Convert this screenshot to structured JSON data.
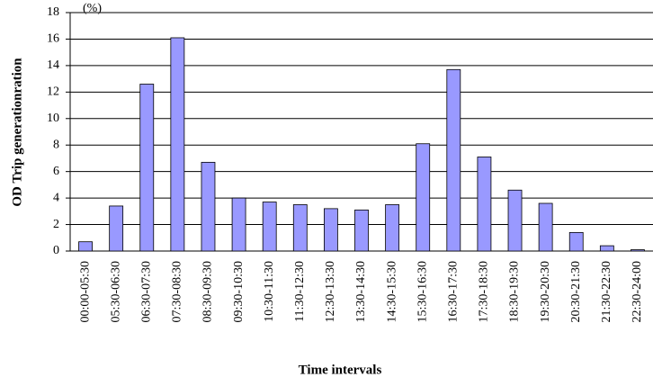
{
  "chart_data": {
    "type": "bar",
    "y_label": "OD Trip generationration",
    "y_unit": "(%)",
    "x_label": "Time intervals",
    "categories": [
      "00:00-05:30",
      "05:30-06:30",
      "06:30-07:30",
      "07:30-08:30",
      "08:30-09:30",
      "09:30-10:30",
      "10:30-11:30",
      "11:30-12:30",
      "12:30-13:30",
      "13:30-14:30",
      "14:30-15:30",
      "15:30-16:30",
      "16:30-17:30",
      "17:30-18:30",
      "18:30-19:30",
      "19:30-20:30",
      "20:30-21:30",
      "21:30-22:30",
      "22:30-24:00"
    ],
    "values": [
      0.7,
      3.4,
      12.6,
      16.1,
      6.7,
      4.0,
      3.7,
      3.5,
      3.2,
      3.1,
      3.5,
      8.1,
      13.7,
      7.1,
      4.6,
      3.6,
      1.4,
      0.4,
      0.1
    ],
    "color": "#9999ff",
    "ylim": [
      0,
      18
    ],
    "yticks": [
      0,
      2,
      4,
      6,
      8,
      10,
      12,
      14,
      16,
      18
    ],
    "grid": true
  }
}
